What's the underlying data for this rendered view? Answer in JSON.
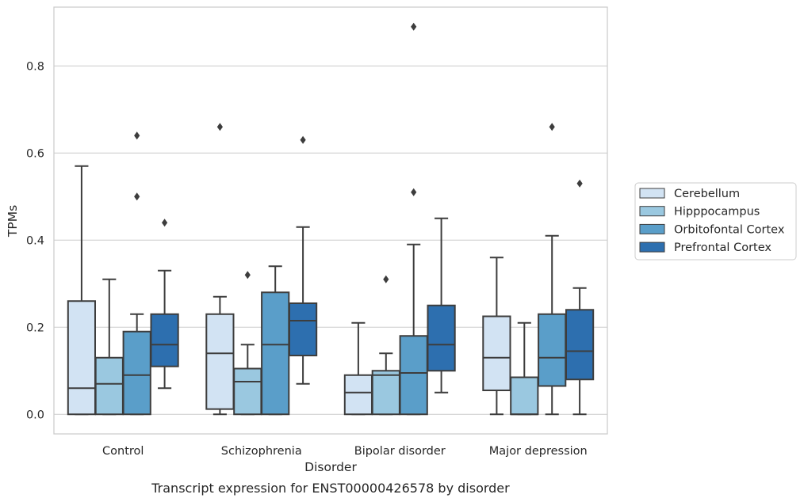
{
  "chart_data": {
    "type": "box",
    "caption": "Transcript expression for ENST00000426578 by disorder",
    "xlabel": "Disorder",
    "ylabel": "TPMs",
    "ylim": [
      -0.045,
      0.935
    ],
    "yticks": [
      0.0,
      0.2,
      0.4,
      0.6,
      0.8
    ],
    "ytick_labels": [
      "0.0",
      "0.2",
      "0.4",
      "0.6",
      "0.8"
    ],
    "grid": "horizontal",
    "legend_position": "right",
    "categories": [
      "Control",
      "Schizophrenia",
      "Bipolar disorder",
      "Major depression"
    ],
    "series": [
      {
        "name": "Cerebellum",
        "color": "#d2e3f3",
        "boxes": [
          {
            "whisker_low": 0.0,
            "q1": 0.0,
            "median": 0.06,
            "q3": 0.26,
            "whisker_high": 0.57,
            "outliers": []
          },
          {
            "whisker_low": 0.0,
            "q1": 0.012,
            "median": 0.14,
            "q3": 0.23,
            "whisker_high": 0.27,
            "outliers": [
              0.66
            ]
          },
          {
            "whisker_low": 0.0,
            "q1": 0.0,
            "median": 0.05,
            "q3": 0.09,
            "whisker_high": 0.21,
            "outliers": []
          },
          {
            "whisker_low": 0.0,
            "q1": 0.055,
            "median": 0.13,
            "q3": 0.225,
            "whisker_high": 0.36,
            "outliers": []
          }
        ]
      },
      {
        "name": "Hipppocampus",
        "color": "#9ac8e0",
        "boxes": [
          {
            "whisker_low": 0.0,
            "q1": 0.0,
            "median": 0.07,
            "q3": 0.13,
            "whisker_high": 0.31,
            "outliers": []
          },
          {
            "whisker_low": 0.0,
            "q1": 0.0,
            "median": 0.075,
            "q3": 0.105,
            "whisker_high": 0.16,
            "outliers": [
              0.32
            ]
          },
          {
            "whisker_low": 0.0,
            "q1": 0.0,
            "median": 0.09,
            "q3": 0.1,
            "whisker_high": 0.14,
            "outliers": [
              0.31
            ]
          },
          {
            "whisker_low": 0.0,
            "q1": 0.0,
            "median": 0.0,
            "q3": 0.085,
            "whisker_high": 0.21,
            "outliers": []
          }
        ]
      },
      {
        "name": "Orbitofontal Cortex",
        "color": "#5a9ec9",
        "boxes": [
          {
            "whisker_low": 0.0,
            "q1": 0.0,
            "median": 0.09,
            "q3": 0.19,
            "whisker_high": 0.23,
            "outliers": [
              0.5,
              0.64
            ]
          },
          {
            "whisker_low": 0.0,
            "q1": 0.0,
            "median": 0.16,
            "q3": 0.28,
            "whisker_high": 0.34,
            "outliers": []
          },
          {
            "whisker_low": 0.0,
            "q1": 0.0,
            "median": 0.095,
            "q3": 0.18,
            "whisker_high": 0.39,
            "outliers": [
              0.51,
              0.89
            ]
          },
          {
            "whisker_low": 0.0,
            "q1": 0.065,
            "median": 0.13,
            "q3": 0.23,
            "whisker_high": 0.41,
            "outliers": [
              0.66
            ]
          }
        ]
      },
      {
        "name": "Prefrontal Cortex",
        "color": "#2d6faf",
        "boxes": [
          {
            "whisker_low": 0.06,
            "q1": 0.11,
            "median": 0.16,
            "q3": 0.23,
            "whisker_high": 0.33,
            "outliers": [
              0.44
            ]
          },
          {
            "whisker_low": 0.07,
            "q1": 0.135,
            "median": 0.215,
            "q3": 0.255,
            "whisker_high": 0.43,
            "outliers": [
              0.63
            ]
          },
          {
            "whisker_low": 0.05,
            "q1": 0.1,
            "median": 0.16,
            "q3": 0.25,
            "whisker_high": 0.45,
            "outliers": []
          },
          {
            "whisker_low": 0.0,
            "q1": 0.08,
            "median": 0.145,
            "q3": 0.24,
            "whisker_high": 0.29,
            "outliers": [
              0.53
            ]
          }
        ]
      }
    ]
  }
}
